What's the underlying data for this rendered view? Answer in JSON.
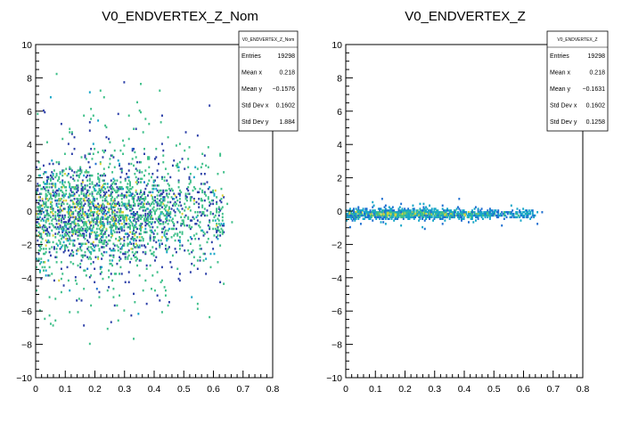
{
  "chart_data": [
    {
      "type": "heatmap",
      "title": "V0_ENDVERTEX_Z_Nom",
      "xlim": [
        0,
        0.8
      ],
      "ylim": [
        -10,
        10
      ],
      "x_tick_labels": [
        "0",
        "0.1",
        "0.2",
        "0.3",
        "0.4",
        "0.5",
        "0.6",
        "0.7",
        "0.8"
      ],
      "y_tick_labels": [
        "10",
        "8",
        "6",
        "4",
        "2",
        "0",
        "−2",
        "−4",
        "−6",
        "−8",
        "−10"
      ],
      "x_ticks": [
        0,
        0.1,
        0.2,
        0.3,
        0.4,
        0.5,
        0.6,
        0.7,
        0.8
      ],
      "y_ticks": [
        10,
        8,
        6,
        4,
        2,
        0,
        -2,
        -4,
        -6,
        -8,
        -10
      ],
      "stats": {
        "name": "V0_ENDVERTEX_Z_Nom",
        "rows": [
          {
            "label": "Entries",
            "value": "19298"
          },
          {
            "label": "Mean x",
            "value": "0.218"
          },
          {
            "label": "Mean y",
            "value": "−0.1576"
          },
          {
            "label": "Std Dev x",
            "value": "0.1602"
          },
          {
            "label": "Std Dev y",
            "value": "1.884"
          }
        ]
      },
      "entries": 19298,
      "mean_x": 0.218,
      "mean_y": -0.1576,
      "std_x": 0.1602,
      "std_y": 1.884,
      "x_max_extent": 0.67
    },
    {
      "type": "heatmap",
      "title": "V0_ENDVERTEX_Z",
      "xlim": [
        0,
        0.8
      ],
      "ylim": [
        -10,
        10
      ],
      "x_tick_labels": [
        "0",
        "0.1",
        "0.2",
        "0.3",
        "0.4",
        "0.5",
        "0.6",
        "0.7",
        "0.8"
      ],
      "y_tick_labels": [
        "10",
        "8",
        "6",
        "4",
        "2",
        "0",
        "−2",
        "−4",
        "−6",
        "−8",
        "−10"
      ],
      "x_ticks": [
        0,
        0.1,
        0.2,
        0.3,
        0.4,
        0.5,
        0.6,
        0.7,
        0.8
      ],
      "y_ticks": [
        10,
        8,
        6,
        4,
        2,
        0,
        -2,
        -4,
        -6,
        -8,
        -10
      ],
      "stats": {
        "name": "V0_ENDVERTEX_Z",
        "rows": [
          {
            "label": "Entries",
            "value": "19298"
          },
          {
            "label": "Mean x",
            "value": "0.218"
          },
          {
            "label": "Mean y",
            "value": "−0.1631"
          },
          {
            "label": "Std Dev x",
            "value": "0.1602"
          },
          {
            "label": "Std Dev y",
            "value": "0.1258"
          }
        ]
      },
      "entries": 19298,
      "mean_x": 0.218,
      "mean_y": -0.1631,
      "std_x": 0.1602,
      "std_y": 0.1258,
      "x_max_extent": 0.67
    }
  ],
  "colors": {
    "low": "#2c3fa8",
    "mid_low": "#1f6fd1",
    "mid": "#18a6c8",
    "mid_high": "#3fc08a",
    "high": "#d8d23a",
    "axis": "#000000"
  }
}
